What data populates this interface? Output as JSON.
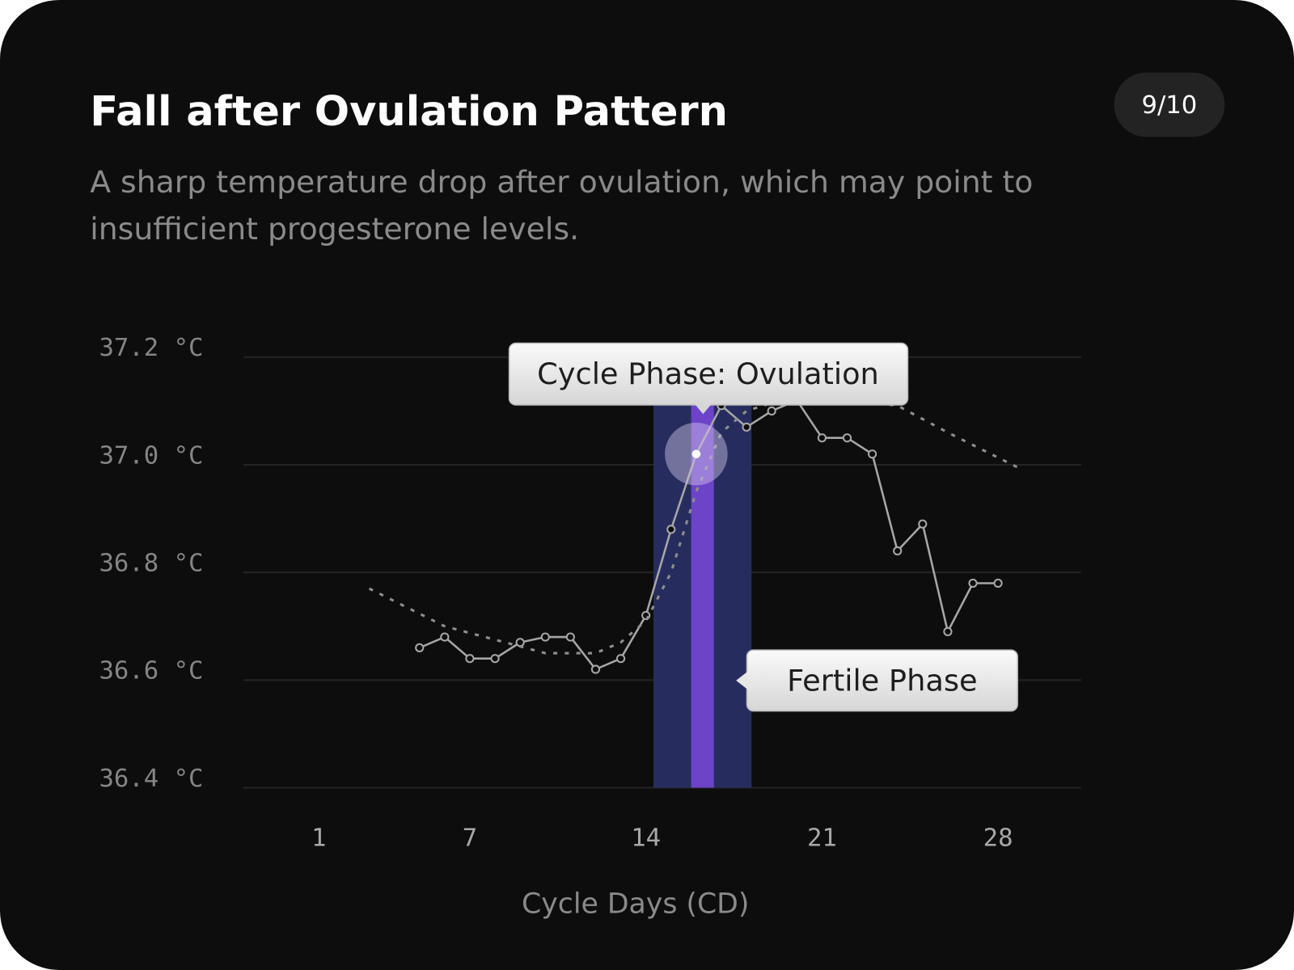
{
  "chart_data": {
    "type": "line",
    "title": "Fall after Ovulation Pattern",
    "badge": "9/10",
    "subtitle": "A sharp temperature drop after ovulation, which may point to insufficient progesterone levels.",
    "x_label": "Cycle Days (CD)",
    "xlim": [
      -2,
      31.3
    ],
    "xticks": [
      1,
      7,
      14,
      21,
      28
    ],
    "ylim": [
      36.4,
      37.2
    ],
    "yticks": [
      {
        "value": 36.4,
        "label": "36.4 °C"
      },
      {
        "value": 36.6,
        "label": "36.6 °C"
      },
      {
        "value": 36.8,
        "label": "36.8 °C"
      },
      {
        "value": 37.0,
        "label": "37.0 °C"
      },
      {
        "value": 37.2,
        "label": "37.2 °C"
      }
    ],
    "grid": true,
    "series": [
      {
        "color": "#a6a6a6",
        "x": [
          5,
          6,
          7,
          8,
          9,
          10,
          11,
          12,
          13,
          14,
          15,
          16,
          17,
          18,
          19,
          20,
          21,
          22,
          23,
          24,
          25,
          26,
          27,
          28
        ],
        "values": [
          36.66,
          36.68,
          36.64,
          36.64,
          36.67,
          36.68,
          36.68,
          36.62,
          36.64,
          36.72,
          36.88,
          37.02,
          37.11,
          37.07,
          37.1,
          37.12,
          37.05,
          37.05,
          37.02,
          36.84,
          36.89,
          36.69,
          36.78,
          36.78
        ]
      },
      {
        "color": "#8f8f8f",
        "dashed": true,
        "x": [
          3,
          6,
          10,
          12,
          13,
          14,
          15,
          16,
          17,
          18,
          20,
          24,
          26,
          29
        ],
        "values": [
          36.77,
          36.7,
          36.65,
          36.65,
          36.67,
          36.71,
          36.8,
          36.95,
          37.06,
          37.1,
          37.13,
          37.11,
          37.06,
          36.99
        ]
      }
    ],
    "highlight_index": 11,
    "bands": [
      {
        "range": [
          14.3,
          18.2
        ],
        "color": "#262d5e"
      },
      {
        "range": [
          15.8,
          16.7
        ],
        "color": "#6d44c8"
      }
    ],
    "annotations": [
      {
        "text": "Cycle Phase: Ovulation"
      },
      {
        "text": "Fertile Phase"
      }
    ]
  }
}
